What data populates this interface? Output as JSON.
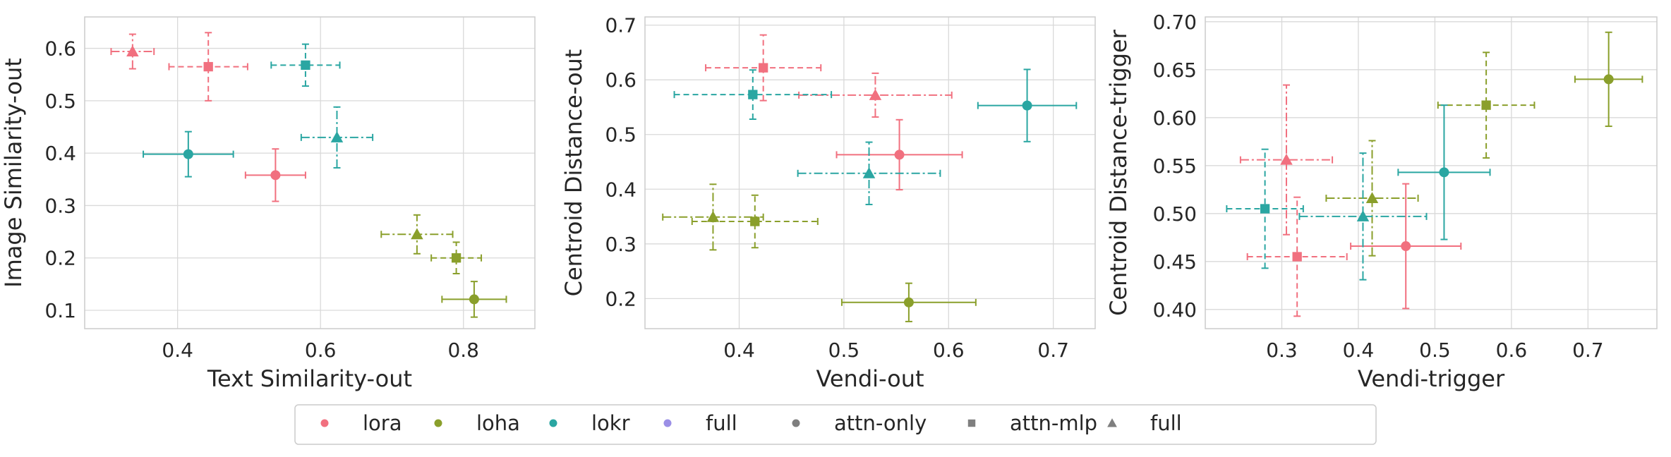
{
  "colors": {
    "lora": "#f1707f",
    "loha": "#8a9f2b",
    "lokr": "#2aa6a2",
    "full": "#9b8fe6",
    "gray": "#7f7f7f"
  },
  "chart_data": [
    {
      "type": "scatter",
      "xlabel": "Text Similarity-out",
      "ylabel": "Image Similarity-out",
      "xlim": [
        0.27,
        0.9
      ],
      "ylim": [
        0.065,
        0.66
      ],
      "xticks": [
        "0.4",
        "0.6",
        "0.8"
      ],
      "xtick_values": [
        0.4,
        0.6,
        0.8
      ],
      "yticks": [
        "0.1",
        "0.2",
        "0.3",
        "0.4",
        "0.5",
        "0.6"
      ],
      "ytick_values": [
        0.1,
        0.2,
        0.3,
        0.4,
        0.5,
        0.6
      ],
      "grid": true,
      "points": [
        {
          "method": "lora",
          "config": "attn-only",
          "x": 0.537,
          "y": 0.358,
          "xerr": 0.042,
          "yerr": 0.05
        },
        {
          "method": "lora",
          "config": "attn-mlp",
          "x": 0.443,
          "y": 0.565,
          "xerr": 0.055,
          "yerr": 0.065
        },
        {
          "method": "lora",
          "config": "full",
          "x": 0.337,
          "y": 0.594,
          "xerr": 0.03,
          "yerr": 0.033
        },
        {
          "method": "loha",
          "config": "attn-only",
          "x": 0.815,
          "y": 0.121,
          "xerr": 0.045,
          "yerr": 0.034
        },
        {
          "method": "loha",
          "config": "attn-mlp",
          "x": 0.79,
          "y": 0.2,
          "xerr": 0.035,
          "yerr": 0.03
        },
        {
          "method": "loha",
          "config": "full",
          "x": 0.735,
          "y": 0.245,
          "xerr": 0.05,
          "yerr": 0.037
        },
        {
          "method": "lokr",
          "config": "attn-only",
          "x": 0.415,
          "y": 0.398,
          "xerr": 0.063,
          "yerr": 0.043
        },
        {
          "method": "lokr",
          "config": "attn-mlp",
          "x": 0.579,
          "y": 0.568,
          "xerr": 0.048,
          "yerr": 0.04
        },
        {
          "method": "lokr",
          "config": "full",
          "x": 0.623,
          "y": 0.43,
          "xerr": 0.05,
          "yerr": 0.058
        }
      ]
    },
    {
      "type": "scatter",
      "xlabel": "Vendi-out",
      "ylabel": "Centroid Distance-out",
      "xlim": [
        0.31,
        0.74
      ],
      "ylim": [
        0.145,
        0.715
      ],
      "xticks": [
        "0.4",
        "0.5",
        "0.6",
        "0.7"
      ],
      "xtick_values": [
        0.4,
        0.5,
        0.6,
        0.7
      ],
      "yticks": [
        "0.2",
        "0.3",
        "0.4",
        "0.5",
        "0.6",
        "0.7"
      ],
      "ytick_values": [
        0.2,
        0.3,
        0.4,
        0.5,
        0.6,
        0.7
      ],
      "grid": true,
      "points": [
        {
          "method": "lora",
          "config": "attn-only",
          "x": 0.553,
          "y": 0.463,
          "xerr": 0.06,
          "yerr": 0.064
        },
        {
          "method": "lora",
          "config": "attn-mlp",
          "x": 0.423,
          "y": 0.622,
          "xerr": 0.055,
          "yerr": 0.06
        },
        {
          "method": "lora",
          "config": "full",
          "x": 0.53,
          "y": 0.572,
          "xerr": 0.073,
          "yerr": 0.04
        },
        {
          "method": "loha",
          "config": "attn-only",
          "x": 0.562,
          "y": 0.193,
          "xerr": 0.064,
          "yerr": 0.035
        },
        {
          "method": "loha",
          "config": "attn-mlp",
          "x": 0.415,
          "y": 0.341,
          "xerr": 0.06,
          "yerr": 0.048
        },
        {
          "method": "loha",
          "config": "full",
          "x": 0.375,
          "y": 0.349,
          "xerr": 0.048,
          "yerr": 0.06
        },
        {
          "method": "lokr",
          "config": "attn-only",
          "x": 0.675,
          "y": 0.553,
          "xerr": 0.047,
          "yerr": 0.066
        },
        {
          "method": "lokr",
          "config": "attn-mlp",
          "x": 0.413,
          "y": 0.573,
          "xerr": 0.075,
          "yerr": 0.045
        },
        {
          "method": "lokr",
          "config": "full",
          "x": 0.524,
          "y": 0.429,
          "xerr": 0.068,
          "yerr": 0.057
        }
      ]
    },
    {
      "type": "scatter",
      "xlabel": "Vendi-trigger",
      "ylabel": "Centroid Distance-trigger",
      "xlim": [
        0.2,
        0.79
      ],
      "ylim": [
        0.38,
        0.705
      ],
      "xticks": [
        "0.3",
        "0.4",
        "0.5",
        "0.6",
        "0.7"
      ],
      "xtick_values": [
        0.3,
        0.4,
        0.5,
        0.6,
        0.7
      ],
      "yticks": [
        "0.40",
        "0.45",
        "0.50",
        "0.55",
        "0.60",
        "0.65",
        "0.70"
      ],
      "ytick_values": [
        0.4,
        0.45,
        0.5,
        0.55,
        0.6,
        0.65,
        0.7
      ],
      "grid": true,
      "points": [
        {
          "method": "lora",
          "config": "attn-only",
          "x": 0.462,
          "y": 0.466,
          "xerr": 0.072,
          "yerr": 0.065
        },
        {
          "method": "lora",
          "config": "attn-mlp",
          "x": 0.32,
          "y": 0.455,
          "xerr": 0.065,
          "yerr": 0.062
        },
        {
          "method": "lora",
          "config": "full",
          "x": 0.306,
          "y": 0.556,
          "xerr": 0.06,
          "yerr": 0.078
        },
        {
          "method": "loha",
          "config": "attn-only",
          "x": 0.727,
          "y": 0.64,
          "xerr": 0.044,
          "yerr": 0.049
        },
        {
          "method": "loha",
          "config": "attn-mlp",
          "x": 0.567,
          "y": 0.613,
          "xerr": 0.063,
          "yerr": 0.055
        },
        {
          "method": "loha",
          "config": "full",
          "x": 0.418,
          "y": 0.516,
          "xerr": 0.06,
          "yerr": 0.06
        },
        {
          "method": "lokr",
          "config": "attn-only",
          "x": 0.512,
          "y": 0.543,
          "xerr": 0.06,
          "yerr": 0.07
        },
        {
          "method": "lokr",
          "config": "attn-mlp",
          "x": 0.278,
          "y": 0.505,
          "xerr": 0.05,
          "yerr": 0.062
        },
        {
          "method": "lokr",
          "config": "full",
          "x": 0.406,
          "y": 0.497,
          "xerr": 0.083,
          "yerr": 0.066
        }
      ]
    }
  ],
  "legend": {
    "placement": "bottom-center",
    "items": [
      {
        "label": "lora",
        "marker": "circle",
        "color_key": "lora"
      },
      {
        "label": "loha",
        "marker": "circle",
        "color_key": "loha"
      },
      {
        "label": "lokr",
        "marker": "circle",
        "color_key": "lokr"
      },
      {
        "label": "full",
        "marker": "circle",
        "color_key": "full"
      },
      {
        "label": "attn-only",
        "marker": "circle",
        "color_key": "gray"
      },
      {
        "label": "attn-mlp",
        "marker": "square",
        "color_key": "gray"
      },
      {
        "label": "full",
        "marker": "triangle",
        "color_key": "gray"
      }
    ]
  }
}
